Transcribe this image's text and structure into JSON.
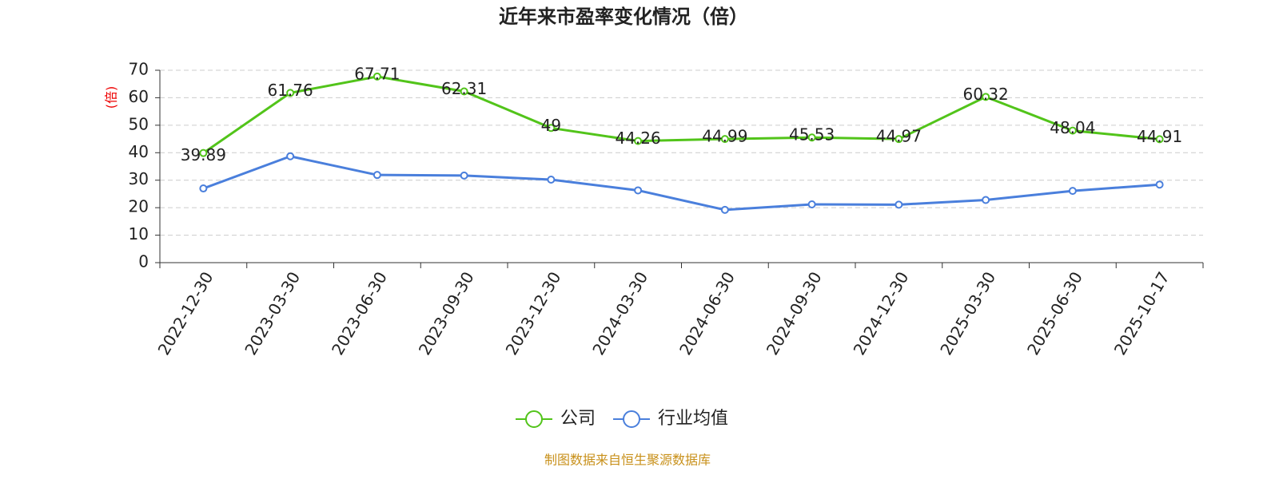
{
  "chart_data": {
    "type": "line",
    "title": "近年来市盈率变化情况（倍）",
    "y_label": "(倍)",
    "categories": [
      "2022-12-30",
      "2023-03-30",
      "2023-06-30",
      "2023-09-30",
      "2023-12-30",
      "2024-03-30",
      "2024-06-30",
      "2024-09-30",
      "2024-12-30",
      "2025-03-30",
      "2025-06-30",
      "2025-10-17"
    ],
    "series": [
      {
        "name": "公司",
        "color": "#52c41a",
        "values": [
          39.89,
          61.76,
          67.71,
          62.31,
          49,
          44.26,
          44.99,
          45.53,
          44.97,
          60.32,
          48.04,
          44.91
        ],
        "data_labels": true
      },
      {
        "name": "行业均值",
        "color": "#4a7fdc",
        "values": [
          27.0,
          38.7,
          31.9,
          31.7,
          30.2,
          26.3,
          19.2,
          21.2,
          21.1,
          22.8,
          26.1,
          28.4
        ],
        "data_labels": false
      }
    ],
    "ylim": [
      0,
      70
    ],
    "yticks": [
      0,
      10,
      20,
      30,
      40,
      50,
      60,
      70
    ],
    "grid": true,
    "legend": "bottom",
    "source": "制图数据来自恒生聚源数据库"
  }
}
